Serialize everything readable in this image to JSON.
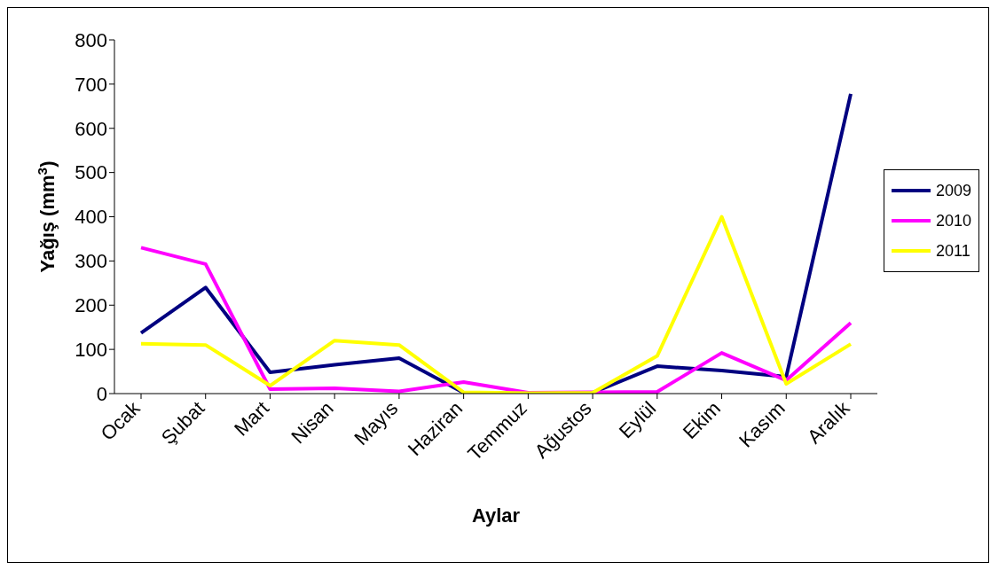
{
  "chart_data": {
    "type": "line",
    "xlabel": "Aylar",
    "ylabel": "Yağış (mm$^{3}$)",
    "categories": [
      "Ocak",
      "Şubat",
      "Mart",
      "Nisan",
      "Mayıs",
      "Haziran",
      "Temmuz",
      "Ağustos",
      "Eylül",
      "Ekim",
      "Kasım",
      "Aralık"
    ],
    "series": [
      {
        "name": "2009",
        "color": "#000080",
        "values": [
          137,
          240,
          48,
          65,
          80,
          2,
          0,
          2,
          62,
          52,
          38,
          678
        ]
      },
      {
        "name": "2010",
        "color": "#ff00ff",
        "values": [
          330,
          293,
          10,
          12,
          5,
          26,
          2,
          3,
          4,
          92,
          30,
          160
        ]
      },
      {
        "name": "2011",
        "color": "#ffff00",
        "values": [
          113,
          110,
          18,
          120,
          110,
          3,
          1,
          2,
          85,
          400,
          22,
          112
        ]
      }
    ],
    "ylim": [
      0,
      800
    ],
    "yticks": [
      0,
      100,
      200,
      300,
      400,
      500,
      600,
      700,
      800
    ],
    "grid": false,
    "legend": "right",
    "marker": "none",
    "line_style": "solid"
  }
}
